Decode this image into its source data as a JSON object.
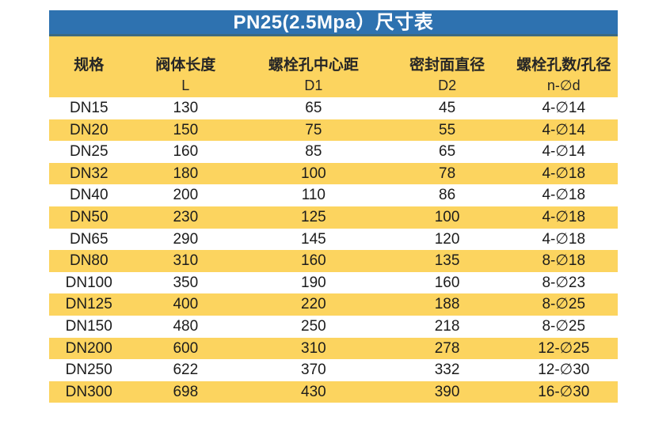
{
  "title": "PN25(2.5Mpa）尺寸表",
  "colors": {
    "title_bg": "#2E72B0",
    "title_edge": "#3C6A80",
    "title_text": "#FFFFFF",
    "stripe_yellow": "#FCD45F",
    "row_white": "#FFFFFF",
    "text": "#1C1C1C"
  },
  "table": {
    "columns": [
      {
        "label": "规格",
        "sub": ""
      },
      {
        "label": "阀体长度",
        "sub": "L"
      },
      {
        "label": "螺栓孔中心距",
        "sub": "D1"
      },
      {
        "label": "密封面直径",
        "sub": "D2"
      },
      {
        "label": "螺栓孔数/孔径",
        "sub": "n-∅d"
      }
    ],
    "rows": [
      [
        "DN15",
        "130",
        "65",
        "45",
        "4-∅14"
      ],
      [
        "DN20",
        "150",
        "75",
        "55",
        "4-∅14"
      ],
      [
        "DN25",
        "160",
        "85",
        "65",
        "4-∅14"
      ],
      [
        "DN32",
        "180",
        "100",
        "78",
        "4-∅18"
      ],
      [
        "DN40",
        "200",
        "110",
        "86",
        "4-∅18"
      ],
      [
        "DN50",
        "230",
        "125",
        "100",
        "4-∅18"
      ],
      [
        "DN65",
        "290",
        "145",
        "120",
        "4-∅18"
      ],
      [
        "DN80",
        "310",
        "160",
        "135",
        "8-∅18"
      ],
      [
        "DN100",
        "350",
        "190",
        "160",
        "8-∅23"
      ],
      [
        "DN125",
        "400",
        "220",
        "188",
        "8-∅25"
      ],
      [
        "DN150",
        "480",
        "250",
        "218",
        "8-∅25"
      ],
      [
        "DN200",
        "600",
        "310",
        "278",
        "12-∅25"
      ],
      [
        "DN250",
        "622",
        "370",
        "332",
        "12-∅30"
      ],
      [
        "DN300",
        "698",
        "430",
        "390",
        "16-∅30"
      ]
    ]
  },
  "chart_data": {
    "type": "table",
    "title": "PN25(2.5Mpa）尺寸表",
    "columns": [
      "规格",
      "阀体长度 L",
      "螺栓孔中心距 D1",
      "密封面直径 D2",
      "螺栓孔数/孔径 n-∅d"
    ],
    "rows": [
      [
        "DN15",
        130,
        65,
        45,
        "4-∅14"
      ],
      [
        "DN20",
        150,
        75,
        55,
        "4-∅14"
      ],
      [
        "DN25",
        160,
        85,
        65,
        "4-∅14"
      ],
      [
        "DN32",
        180,
        100,
        78,
        "4-∅18"
      ],
      [
        "DN40",
        200,
        110,
        86,
        "4-∅18"
      ],
      [
        "DN50",
        230,
        125,
        100,
        "4-∅18"
      ],
      [
        "DN65",
        290,
        145,
        120,
        "4-∅18"
      ],
      [
        "DN80",
        310,
        160,
        135,
        "8-∅18"
      ],
      [
        "DN100",
        350,
        190,
        160,
        "8-∅23"
      ],
      [
        "DN125",
        400,
        220,
        188,
        "8-∅25"
      ],
      [
        "DN150",
        480,
        250,
        218,
        "8-∅25"
      ],
      [
        "DN200",
        600,
        310,
        278,
        "12-∅25"
      ],
      [
        "DN250",
        622,
        370,
        332,
        "12-∅30"
      ],
      [
        "DN300",
        698,
        430,
        390,
        "16-∅30"
      ]
    ],
    "layout_hints": {
      "striped": true,
      "stripe_color": "#FCD45F",
      "header_background": "#FCD45F",
      "title_background": "#2E72B0"
    }
  }
}
